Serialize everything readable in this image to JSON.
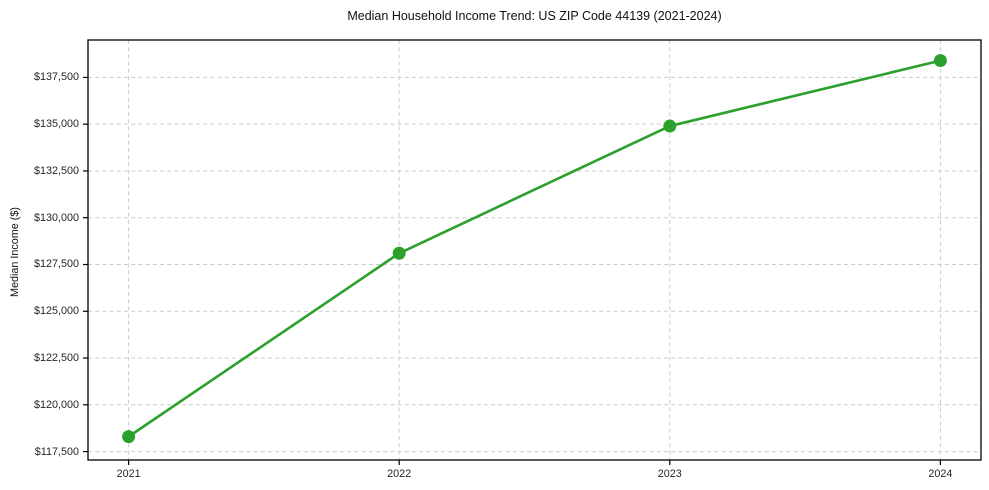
{
  "chart_data": {
    "type": "line",
    "title": "Median Household Income Trend: US ZIP Code 44139 (2021-2024)",
    "xlabel": "",
    "ylabel": "Median Income ($)",
    "x": [
      2021,
      2022,
      2023,
      2024
    ],
    "x_tick_labels": [
      "2021",
      "2022",
      "2023",
      "2024"
    ],
    "series": [
      {
        "name": "Median Household Income",
        "values": [
          118300,
          128100,
          134900,
          138400
        ]
      }
    ],
    "y_ticks": [
      117500,
      120000,
      122500,
      125000,
      127500,
      130000,
      132500,
      135000,
      137500
    ],
    "y_tick_labels": [
      "$117,500",
      "$120,000",
      "$122,500",
      "$125,000",
      "$127,500",
      "$130,000",
      "$132,500",
      "$135,000",
      "$137,500"
    ],
    "xlim": [
      2020.85,
      2024.15
    ],
    "ylim": [
      117050,
      139500
    ],
    "grid": "dashed, both axes",
    "legend_position": "none",
    "line_color": "#2ca02c",
    "marker": "circle",
    "grid_color": "#cccccc",
    "axis_color": "#000000",
    "text_color": "#262626",
    "background_color": "#ffffff"
  }
}
